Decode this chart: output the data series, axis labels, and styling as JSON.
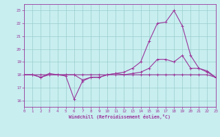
{
  "xlabel": "Windchill (Refroidissement éolien,°C)",
  "xlim": [
    0,
    23
  ],
  "ylim": [
    15.5,
    23.5
  ],
  "yticks": [
    16,
    17,
    18,
    19,
    20,
    21,
    22,
    23
  ],
  "xticks": [
    0,
    1,
    2,
    3,
    4,
    5,
    6,
    7,
    8,
    9,
    10,
    11,
    12,
    13,
    14,
    15,
    16,
    17,
    18,
    19,
    20,
    21,
    22,
    23
  ],
  "bg_color": "#c8eef0",
  "line_color": "#993399",
  "grid_color": "#99cccc",
  "series1_x": [
    0,
    1,
    2,
    3,
    4,
    5,
    6,
    7,
    8,
    9,
    10,
    11,
    12,
    13,
    14,
    15,
    16,
    17,
    18,
    19,
    20,
    21,
    22,
    23
  ],
  "series1_y": [
    18,
    18,
    17.8,
    18.1,
    18,
    17.9,
    16.1,
    17.5,
    17.8,
    17.8,
    18,
    18.1,
    18,
    18,
    18,
    18,
    18,
    18,
    18,
    18,
    18,
    18,
    18,
    17.8
  ],
  "series2_x": [
    0,
    1,
    2,
    3,
    4,
    5,
    6,
    7,
    8,
    9,
    10,
    11,
    12,
    13,
    14,
    15,
    16,
    17,
    18,
    19,
    20,
    21,
    22,
    23
  ],
  "series2_y": [
    18,
    18,
    17.8,
    18,
    18,
    18,
    18,
    17.6,
    17.8,
    17.8,
    18,
    18,
    18.0,
    18.1,
    18.2,
    18.5,
    19.2,
    19.2,
    19.0,
    19.5,
    18.5,
    18.5,
    18.2,
    17.8
  ],
  "series3_x": [
    0,
    1,
    2,
    3,
    4,
    5,
    6,
    7,
    8,
    9,
    10,
    11,
    12,
    13,
    14,
    15,
    16,
    17,
    18,
    19,
    20,
    21,
    22,
    23
  ],
  "series3_y": [
    18,
    18,
    18,
    18,
    18,
    18,
    18,
    18,
    18,
    18,
    18,
    18.1,
    18.2,
    18.5,
    19.0,
    20.6,
    22.0,
    22.1,
    23.0,
    21.8,
    19.5,
    18.5,
    18.3,
    17.8
  ]
}
